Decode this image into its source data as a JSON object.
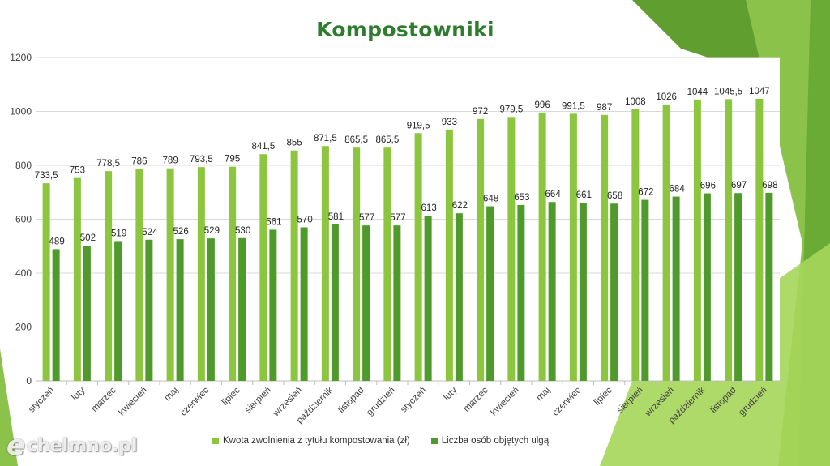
{
  "page": {
    "title": "Kompostowniki",
    "watermark": "chelmno.pl",
    "colors": {
      "series_light": "#8cc63f",
      "series_dark": "#4e9a2a",
      "title": "#2e7d2e",
      "accent_shapes": [
        "#5f9e2f",
        "#8bc34a",
        "#a5d65a",
        "#6aab35"
      ]
    }
  },
  "chart_data": {
    "type": "bar",
    "title": "",
    "xlabel": "",
    "ylabel": "",
    "ylim": [
      0,
      1200
    ],
    "yticks": [
      0,
      200,
      400,
      600,
      800,
      1000,
      1200
    ],
    "grid": true,
    "legend_position": "bottom",
    "categories": [
      "styczeń",
      "luty",
      "marzec",
      "kwiecień",
      "maj",
      "czerwiec",
      "lipiec",
      "sierpień",
      "wrzesień",
      "październik",
      "listopad",
      "grudzień",
      "styczeń",
      "luty",
      "marzec",
      "kwiecień",
      "maj",
      "czerwiec",
      "lipiec",
      "sierpień",
      "wrzesień",
      "październik",
      "listopad",
      "grudzień"
    ],
    "series": [
      {
        "name": "Kwota zwolnienia z tytułu kompostowania (zł)",
        "color": "#8cc63f",
        "values": [
          733.5,
          753,
          778.5,
          786,
          789,
          793.5,
          795,
          841.5,
          855,
          871.5,
          865.5,
          865.5,
          919.5,
          933,
          972,
          979.5,
          996,
          991.5,
          987,
          1008,
          1026,
          1044,
          1045.5,
          1047
        ],
        "labels": [
          "733,5",
          "753",
          "778,5",
          "786",
          "789",
          "793,5",
          "795",
          "841,5",
          "855",
          "871,5",
          "865,5",
          "865,5",
          "919,5",
          "933",
          "972",
          "979,5",
          "996",
          "991,5",
          "987",
          "1008",
          "1026",
          "1044",
          "1045,5",
          "1047"
        ]
      },
      {
        "name": "Liczba osób objętych ulgą",
        "color": "#4e9a2a",
        "values": [
          489,
          502,
          519,
          524,
          526,
          529,
          530,
          561,
          570,
          581,
          577,
          577,
          613,
          622,
          648,
          653,
          664,
          661,
          658,
          672,
          684,
          696,
          697,
          698
        ],
        "labels": [
          "489",
          "502",
          "519",
          "524",
          "526",
          "529",
          "530",
          "561",
          "570",
          "581",
          "577",
          "577",
          "613",
          "622",
          "648",
          "653",
          "664",
          "661",
          "658",
          "672",
          "684",
          "696",
          "697",
          "698"
        ]
      }
    ]
  }
}
